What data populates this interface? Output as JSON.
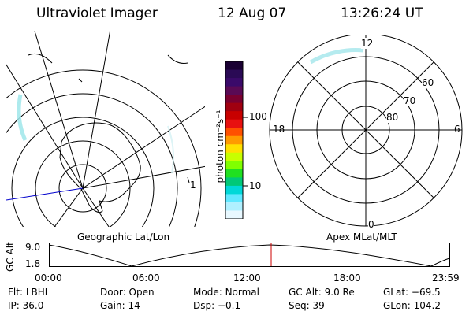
{
  "header": {
    "instrument": "Ultraviolet Imager",
    "date": "12 Aug 07",
    "time": "13:26:24 UT"
  },
  "colorbar": {
    "unit_label": "photon cm⁻²s⁻¹",
    "tick_labels": [
      "100",
      "10"
    ],
    "colors": [
      "#1a0033",
      "#2a0a55",
      "#3a0a6a",
      "#5a0a55",
      "#7a0030",
      "#a00010",
      "#c80000",
      "#e81010",
      "#ff5000",
      "#ff9a00",
      "#ffe000",
      "#c8ff00",
      "#80ff00",
      "#20e020",
      "#00c878",
      "#00d8d8",
      "#60e8ff",
      "#b0f0ff",
      "#e8f8ff"
    ]
  },
  "geo_map": {
    "caption": "Geographic Lat/Lon",
    "side_mark": "1"
  },
  "polar_map": {
    "caption": "Apex MLat/MLT",
    "mlt_labels": {
      "top": "12",
      "left": "18",
      "right": "6",
      "bottom": "0"
    },
    "lat_labels": [
      "60",
      "70",
      "80"
    ]
  },
  "altitude_strip": {
    "ylabel": "GC Alt",
    "y_ticks": [
      "9.0",
      "1.8"
    ],
    "x_ticks": [
      "00:00",
      "06:00",
      "12:00",
      "18:00",
      "23:59"
    ]
  },
  "status": {
    "row1": [
      {
        "label": "Flt:",
        "value": "LBHL"
      },
      {
        "label": "Door:",
        "value": "Open"
      },
      {
        "label": "Mode:",
        "value": "Normal"
      },
      {
        "label": "GC Alt:",
        "value": "9.0 Re"
      },
      {
        "label": "GLat:",
        "value": "−69.5"
      }
    ],
    "row2": [
      {
        "label": "IP:",
        "value": "36.0"
      },
      {
        "label": "Gain:",
        "value": "14"
      },
      {
        "label": "Dsp:",
        "value": "−0.1"
      },
      {
        "label": "Seq:",
        "value": "39"
      },
      {
        "label": "GLon:",
        "value": "104.2"
      }
    ]
  }
}
